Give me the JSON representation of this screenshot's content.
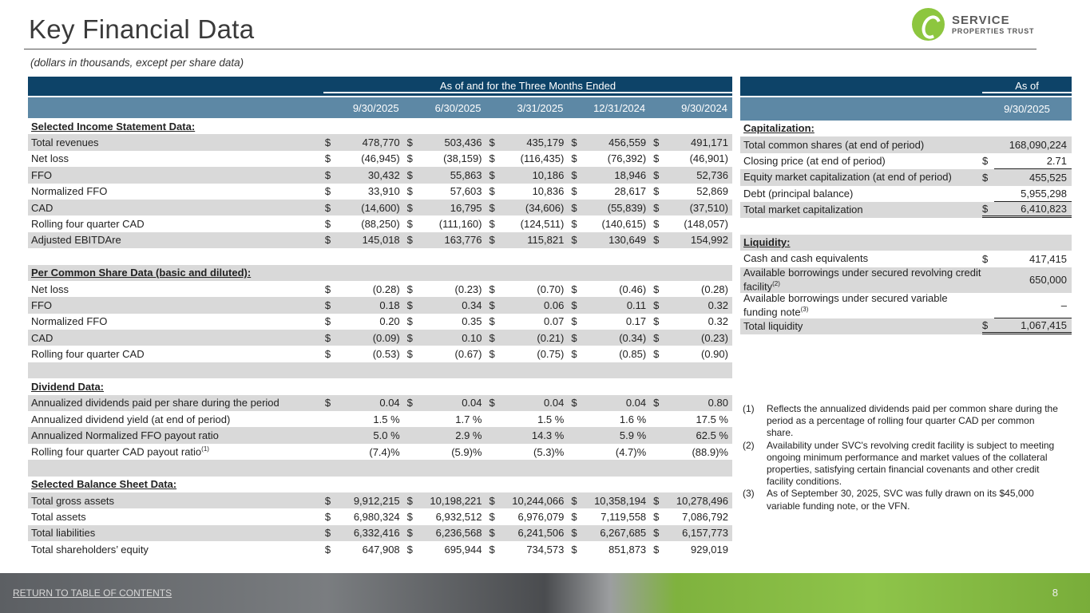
{
  "header": {
    "title": "Key Financial Data",
    "subtitle": "(dollars in thousands, except per share data)",
    "logo_line1": "SERVICE",
    "logo_line2": "PROPERTIES TRUST"
  },
  "left_table": {
    "group_header": "As of and for the Three Months Ended",
    "columns": [
      "9/30/2025",
      "6/30/2025",
      "3/31/2025",
      "12/31/2024",
      "9/30/2024"
    ],
    "rows": [
      {
        "label": "Selected Income Statement Data:",
        "section": true
      },
      {
        "label": "Total revenues",
        "dollar": true,
        "values": [
          "478,770",
          "503,436",
          "435,179",
          "456,559",
          "491,171"
        ]
      },
      {
        "label": "Net loss",
        "dollar": true,
        "values": [
          "(46,945)",
          "(38,159)",
          "(116,435)",
          "(76,392)",
          "(46,901)"
        ]
      },
      {
        "label": "FFO",
        "dollar": true,
        "values": [
          "30,432",
          "55,863",
          "10,186",
          "18,946",
          "52,736"
        ]
      },
      {
        "label": "Normalized FFO",
        "dollar": true,
        "values": [
          "33,910",
          "57,603",
          "10,836",
          "28,617",
          "52,869"
        ]
      },
      {
        "label": "CAD",
        "dollar": true,
        "values": [
          "(14,600)",
          "16,795",
          "(34,606)",
          "(55,839)",
          "(37,510)"
        ]
      },
      {
        "label": "Rolling four quarter CAD",
        "dollar": true,
        "values": [
          "(88,250)",
          "(111,160)",
          "(124,511)",
          "(140,615)",
          "(148,057)"
        ]
      },
      {
        "label": "Adjusted EBITDAre",
        "dollar": true,
        "values": [
          "145,018",
          "163,776",
          "115,821",
          "130,649",
          "154,992"
        ]
      },
      {
        "label": "",
        "blank": true
      },
      {
        "label": "Per Common Share Data (basic and diluted):",
        "section": true
      },
      {
        "label": "Net loss",
        "dollar": true,
        "values": [
          "(0.28)",
          "(0.23)",
          "(0.70)",
          "(0.46)",
          "(0.28)"
        ]
      },
      {
        "label": "FFO",
        "dollar": true,
        "values": [
          "0.18",
          "0.34",
          "0.06",
          "0.11",
          "0.32"
        ]
      },
      {
        "label": "Normalized FFO",
        "dollar": true,
        "values": [
          "0.20",
          "0.35",
          "0.07",
          "0.17",
          "0.32"
        ]
      },
      {
        "label": "CAD",
        "dollar": true,
        "values": [
          "(0.09)",
          "0.10",
          "(0.21)",
          "(0.34)",
          "(0.23)"
        ]
      },
      {
        "label": "Rolling four quarter CAD",
        "dollar": true,
        "values": [
          "(0.53)",
          "(0.67)",
          "(0.75)",
          "(0.85)",
          "(0.90)"
        ]
      },
      {
        "label": "",
        "blank": true
      },
      {
        "label": "Dividend Data:",
        "section": true
      },
      {
        "label": "Annualized dividends paid per share during the period",
        "dollar": true,
        "values": [
          "0.04",
          "0.04",
          "0.04",
          "0.04",
          "0.80"
        ]
      },
      {
        "label": "Annualized dividend yield (at end of period)",
        "dollar": false,
        "values": [
          "1.5 %",
          "1.7 %",
          "1.5 %",
          "1.6 %",
          "17.5 %"
        ]
      },
      {
        "label": "Annualized Normalized FFO payout ratio",
        "dollar": false,
        "values": [
          "5.0 %",
          "2.9 %",
          "14.3 %",
          "5.9 %",
          "62.5 %"
        ]
      },
      {
        "label": "Rolling four quarter CAD payout ratio",
        "sup": "(1)",
        "dollar": false,
        "values": [
          "(7.4)%",
          "(5.9)%",
          "(5.3)%",
          "(4.7)%",
          "(88.9)%"
        ]
      },
      {
        "label": "",
        "blank": true
      },
      {
        "label": "Selected Balance Sheet Data:",
        "section": true
      },
      {
        "label": "Total gross assets",
        "dollar": true,
        "values": [
          "9,912,215",
          "10,198,221",
          "10,244,066",
          "10,358,194",
          "10,278,496"
        ]
      },
      {
        "label": "Total assets",
        "dollar": true,
        "values": [
          "6,980,324",
          "6,932,512",
          "6,976,079",
          "7,119,558",
          "7,086,792"
        ]
      },
      {
        "label": "Total liabilities",
        "dollar": true,
        "values": [
          "6,332,416",
          "6,236,568",
          "6,241,506",
          "6,267,685",
          "6,157,773"
        ]
      },
      {
        "label": "Total shareholders’ equity",
        "dollar": true,
        "values": [
          "647,908",
          "695,944",
          "734,573",
          "851,873",
          "929,019"
        ]
      }
    ]
  },
  "right_table": {
    "group_header": "As of",
    "column": "9/30/2025",
    "rows": [
      {
        "label": "Capitalization:",
        "section": true
      },
      {
        "label": "Total common shares (at end of period)",
        "dollar": false,
        "value": "168,090,224"
      },
      {
        "label": "Closing price (at end of period)",
        "dollar": true,
        "value": "2.71",
        "line": "ul"
      },
      {
        "label": "Equity market capitalization (at end of period)",
        "dollar": true,
        "value": "455,525"
      },
      {
        "label": "Debt (principal balance)",
        "dollar": false,
        "value": "5,955,298",
        "line": "ul"
      },
      {
        "label": "Total market capitalization",
        "dollar": true,
        "value": "6,410,823",
        "line": "dbl"
      },
      {
        "label": "",
        "blank": true
      },
      {
        "label": "Liquidity:",
        "section": true
      },
      {
        "label": "Cash and cash equivalents",
        "dollar": true,
        "value": "417,415"
      },
      {
        "label": "Available borrowings under secured revolving credit facility",
        "sup": "(2)",
        "dollar": false,
        "value": "650,000",
        "tall": true
      },
      {
        "label": "Available borrowings under secured variable funding note",
        "sup": "(3)",
        "dollar": false,
        "value": "–",
        "tall": true,
        "line": "ul"
      },
      {
        "label": "Total liquidity",
        "dollar": true,
        "value": "1,067,415",
        "line": "dbl"
      }
    ],
    "dollar_sign": "$"
  },
  "footnotes": [
    {
      "num": "(1)",
      "text": "Reflects the annualized dividends paid per common share during the period as a percentage of rolling four quarter CAD per common share."
    },
    {
      "num": "(2)",
      "text": "Availability under SVC's revolving credit facility is subject to meeting ongoing minimum performance and market values of the collateral properties, satisfying certain financial covenants and other credit facility conditions."
    },
    {
      "num": "(3)",
      "text": "As of September 30, 2025, SVC was fully drawn on its $45,000 variable funding note, or the VFN."
    }
  ],
  "footer": {
    "link": "RETURN TO TABLE OF CONTENTS",
    "page": "8"
  },
  "colors": {
    "navy": "#0d4368",
    "steel": "#5d88a5",
    "shade": "#d9d9d9",
    "brand_green": "#8dc63f"
  }
}
